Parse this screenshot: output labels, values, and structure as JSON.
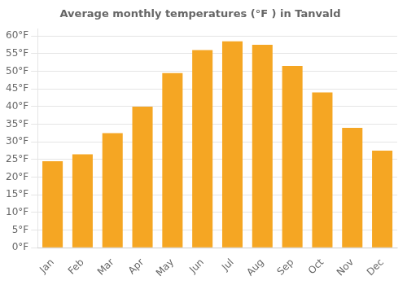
{
  "chart_data": {
    "type": "bar",
    "title": "Average monthly temperatures (°F ) in Tanvald",
    "categories": [
      "Jan",
      "Feb",
      "Mar",
      "Apr",
      "May",
      "Jun",
      "Jul",
      "Aug",
      "Sep",
      "Oct",
      "Nov",
      "Dec"
    ],
    "values": [
      24.5,
      26.5,
      32.5,
      40.0,
      49.5,
      56.0,
      58.5,
      57.5,
      51.5,
      44.0,
      34.0,
      27.5
    ],
    "color": "#F5A623",
    "ylim": [
      0,
      62
    ],
    "yticks": [
      {
        "value": 0,
        "label": "0°F"
      },
      {
        "value": 5,
        "label": "5°F"
      },
      {
        "value": 10,
        "label": "10°F"
      },
      {
        "value": 15,
        "label": "15°F"
      },
      {
        "value": 20,
        "label": "20°F"
      },
      {
        "value": 25,
        "label": "25°F"
      },
      {
        "value": 30,
        "label": "30°F"
      },
      {
        "value": 35,
        "label": "35°F"
      },
      {
        "value": 40,
        "label": "40°F"
      },
      {
        "value": 45,
        "label": "45°F"
      },
      {
        "value": 50,
        "label": "50°F"
      },
      {
        "value": 55,
        "label": "55°F"
      },
      {
        "value": 60,
        "label": "60°F"
      }
    ],
    "grid": true
  }
}
